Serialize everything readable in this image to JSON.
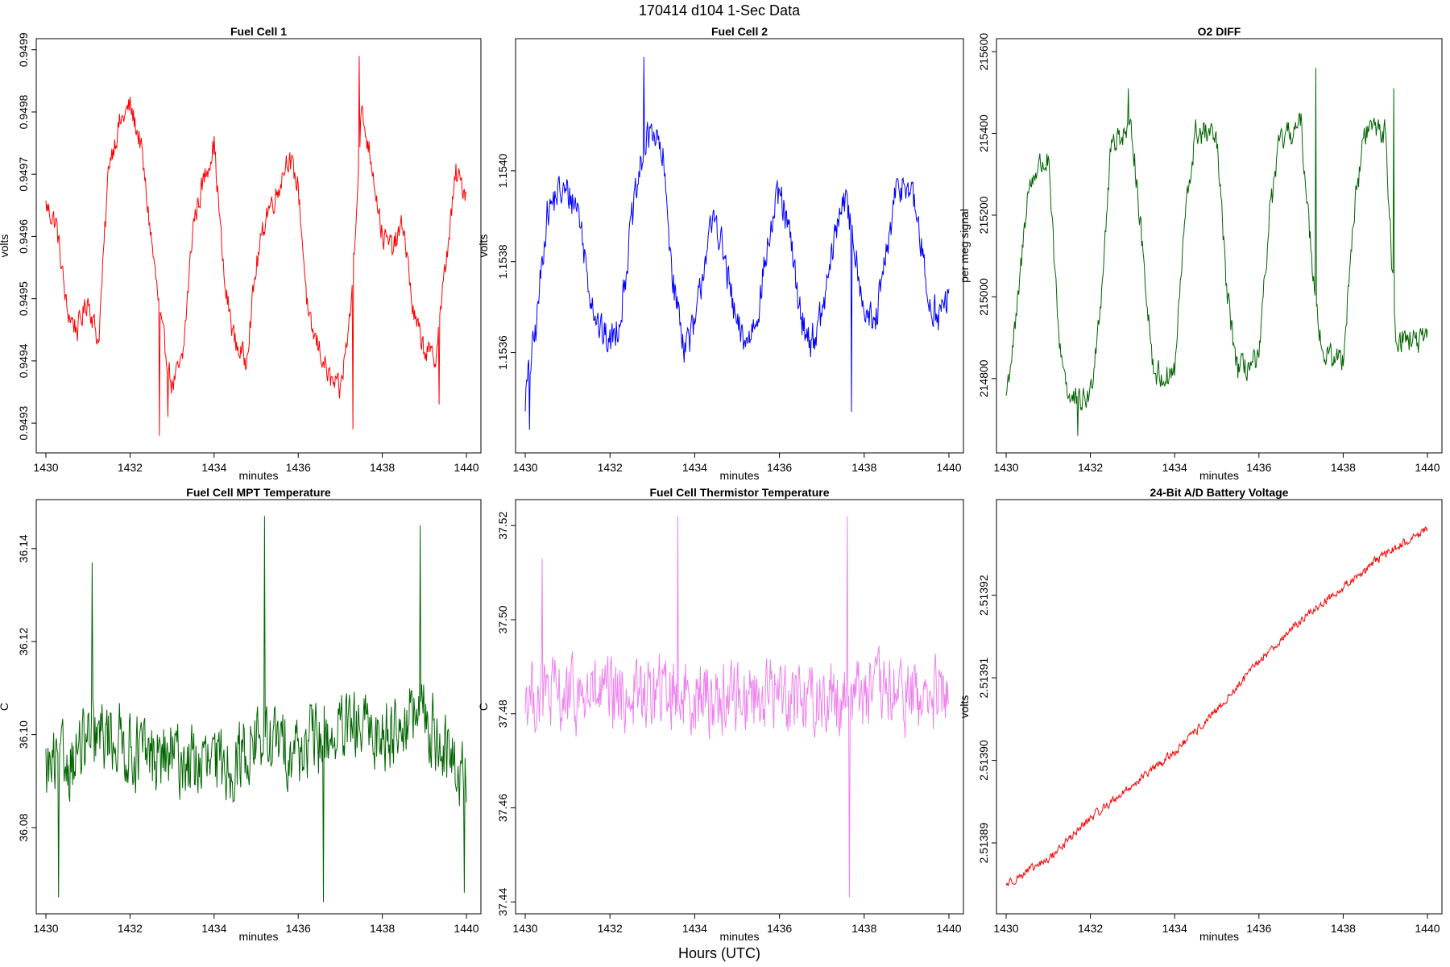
{
  "figure": {
    "title": "170414   d104   1-Sec Data",
    "xlabel": "Hours (UTC)"
  },
  "chart_data": [
    {
      "type": "line",
      "title": "Fuel Cell 1",
      "xlabel": "minutes",
      "ylabel": "volts",
      "color": "#ff0000",
      "xlim": [
        1430,
        1440
      ],
      "ylim": [
        0.94926,
        0.94991
      ],
      "xticks": [
        1430,
        1432,
        1434,
        1436,
        1438,
        1440
      ],
      "yticks": [
        0.9493,
        0.9494,
        0.9495,
        0.9496,
        0.9497,
        0.9498,
        0.9499
      ],
      "ytick_format": 4,
      "x": [
        1430.0,
        1430.25,
        1430.5,
        1430.75,
        1431.0,
        1431.25,
        1431.5,
        1431.75,
        1432.0,
        1432.25,
        1432.5,
        1432.75,
        1433.0,
        1433.25,
        1433.5,
        1433.75,
        1434.0,
        1434.25,
        1434.5,
        1434.75,
        1435.0,
        1435.25,
        1435.5,
        1435.75,
        1436.0,
        1436.25,
        1436.5,
        1436.75,
        1437.0,
        1437.25,
        1437.5,
        1437.75,
        1438.0,
        1438.25,
        1438.5,
        1438.75,
        1439.0,
        1439.25,
        1439.5,
        1439.75,
        1440.0
      ],
      "y": [
        0.94965,
        0.94962,
        0.94948,
        0.94945,
        0.9495,
        0.94943,
        0.94972,
        0.94978,
        0.94981,
        0.94975,
        0.9496,
        0.94945,
        0.94936,
        0.9494,
        0.94962,
        0.94969,
        0.94975,
        0.94952,
        0.94943,
        0.9494,
        0.94955,
        0.94964,
        0.94967,
        0.94973,
        0.94968,
        0.94946,
        0.94942,
        0.94937,
        0.94935,
        0.94948,
        0.9498,
        0.94972,
        0.9496,
        0.94958,
        0.94962,
        0.94947,
        0.94942,
        0.9494,
        0.94955,
        0.9497,
        0.94967
      ],
      "y_noise": 2.8e-05,
      "y_spikes": [
        [
          1432.7,
          0.94928
        ],
        [
          1432.9,
          0.94931
        ],
        [
          1437.45,
          0.94989
        ],
        [
          1437.3,
          0.94929
        ],
        [
          1439.35,
          0.94933
        ]
      ]
    },
    {
      "type": "line",
      "title": "Fuel Cell 2",
      "xlabel": "minutes",
      "ylabel": "volts",
      "color": "#0000ff",
      "xlim": [
        1430,
        1440
      ],
      "ylim": [
        1.15339,
        1.15428
      ],
      "xticks": [
        1430,
        1432,
        1434,
        1436,
        1438,
        1440
      ],
      "yticks": [
        1.1536,
        1.1538,
        1.154
      ],
      "ytick_format": 4,
      "x": [
        1430.0,
        1430.25,
        1430.5,
        1430.75,
        1431.0,
        1431.25,
        1431.5,
        1431.75,
        1432.0,
        1432.25,
        1432.5,
        1432.75,
        1433.0,
        1433.25,
        1433.5,
        1433.75,
        1434.0,
        1434.25,
        1434.5,
        1434.75,
        1435.0,
        1435.25,
        1435.5,
        1435.75,
        1436.0,
        1436.25,
        1436.5,
        1436.75,
        1437.0,
        1437.25,
        1437.5,
        1437.75,
        1438.0,
        1438.25,
        1438.5,
        1438.75,
        1439.0,
        1439.25,
        1439.5,
        1439.75,
        1440.0
      ],
      "y": [
        1.1535,
        1.15365,
        1.1539,
        1.15395,
        1.15395,
        1.15392,
        1.15375,
        1.15365,
        1.15362,
        1.15368,
        1.15388,
        1.15402,
        1.1541,
        1.15402,
        1.15375,
        1.15362,
        1.15365,
        1.15382,
        1.1539,
        1.15378,
        1.15365,
        1.15362,
        1.1537,
        1.15385,
        1.15395,
        1.15385,
        1.15368,
        1.15362,
        1.15368,
        1.15382,
        1.15395,
        1.15385,
        1.1537,
        1.15365,
        1.1538,
        1.15395,
        1.15398,
        1.1539,
        1.15372,
        1.15368,
        1.15372
      ],
      "y_noise": 5.5e-05,
      "y_spikes": [
        [
          1430.1,
          1.15343
        ],
        [
          1432.8,
          1.15425
        ],
        [
          1437.7,
          1.15347
        ]
      ]
    },
    {
      "type": "line",
      "title": "O2 DIFF",
      "xlabel": "minutes",
      "ylabel": "per meg signal",
      "color": "#006400",
      "xlim": [
        1430,
        1440
      ],
      "ylim": [
        214630,
        215620
      ],
      "xticks": [
        1430,
        1432,
        1434,
        1436,
        1438,
        1440
      ],
      "yticks": [
        214800,
        215000,
        215200,
        215400,
        215600
      ],
      "ytick_format": 0,
      "x": [
        1430.0,
        1430.25,
        1430.5,
        1430.75,
        1431.0,
        1431.25,
        1431.5,
        1431.75,
        1432.0,
        1432.25,
        1432.5,
        1432.75,
        1433.0,
        1433.25,
        1433.5,
        1433.75,
        1434.0,
        1434.25,
        1434.5,
        1434.75,
        1435.0,
        1435.25,
        1435.5,
        1435.75,
        1436.0,
        1436.25,
        1436.5,
        1436.75,
        1437.0,
        1437.25,
        1437.5,
        1437.75,
        1438.0,
        1438.25,
        1438.5,
        1438.75,
        1439.0,
        1439.25,
        1439.5,
        1439.75,
        1440.0
      ],
      "y": [
        214760,
        214950,
        215250,
        215320,
        215330,
        214900,
        214750,
        214740,
        214760,
        215000,
        215380,
        215400,
        215400,
        215100,
        214820,
        214800,
        214820,
        215200,
        215400,
        215400,
        215380,
        215000,
        214820,
        214830,
        214840,
        215200,
        215380,
        215400,
        215420,
        215100,
        214860,
        214850,
        214850,
        215200,
        215400,
        215420,
        215400,
        214900,
        214900,
        214890,
        214890
      ],
      "y_noise": 45,
      "y_spikes": [
        [
          1431.7,
          214660
        ],
        [
          1432.9,
          215510
        ],
        [
          1437.35,
          215560
        ],
        [
          1439.2,
          215510
        ]
      ]
    },
    {
      "type": "line",
      "title": "Fuel Cell MPT Temperature",
      "xlabel": "minutes",
      "ylabel": "C",
      "color": "#006400",
      "xlim": [
        1430,
        1440
      ],
      "ylim": [
        36.0625,
        36.1495
      ],
      "xticks": [
        1430,
        1432,
        1434,
        1436,
        1438,
        1440
      ],
      "yticks": [
        36.08,
        36.1,
        36.12,
        36.14
      ],
      "ytick_format": 2,
      "x": [
        1430.0,
        1430.5,
        1431.0,
        1431.5,
        1432.0,
        1432.5,
        1433.0,
        1433.5,
        1434.0,
        1434.5,
        1435.0,
        1435.5,
        1436.0,
        1436.5,
        1437.0,
        1437.5,
        1438.0,
        1438.5,
        1439.0,
        1439.5,
        1440.0
      ],
      "y": [
        36.092,
        36.094,
        36.098,
        36.1,
        36.097,
        36.095,
        36.095,
        36.094,
        36.093,
        36.094,
        36.099,
        36.098,
        36.097,
        36.099,
        36.1,
        36.101,
        36.1,
        36.103,
        36.104,
        36.096,
        36.09
      ],
      "y_noise": 0.011,
      "y_spikes": [
        [
          1431.1,
          36.137
        ],
        [
          1435.2,
          36.147
        ],
        [
          1438.9,
          36.145
        ],
        [
          1436.6,
          36.064
        ],
        [
          1439.95,
          36.066
        ],
        [
          1430.3,
          36.065
        ]
      ]
    },
    {
      "type": "line",
      "title": "Fuel Cell Thermistor Temperature",
      "xlabel": "minutes",
      "ylabel": "C",
      "color": "#ee82ee",
      "xlim": [
        1430,
        1440
      ],
      "ylim": [
        37.4385,
        37.5245
      ],
      "xticks": [
        1430,
        1432,
        1434,
        1436,
        1438,
        1440
      ],
      "yticks": [
        37.44,
        37.46,
        37.48,
        37.5,
        37.52
      ],
      "ytick_format": 2,
      "x": [
        1430.0,
        1430.5,
        1431.0,
        1431.5,
        1432.0,
        1432.5,
        1433.0,
        1433.5,
        1434.0,
        1434.5,
        1435.0,
        1435.5,
        1436.0,
        1436.5,
        1437.0,
        1437.5,
        1438.0,
        1438.5,
        1439.0,
        1439.5,
        1440.0
      ],
      "y": [
        37.484,
        37.484,
        37.483,
        37.484,
        37.483,
        37.484,
        37.484,
        37.485,
        37.484,
        37.483,
        37.484,
        37.484,
        37.485,
        37.484,
        37.483,
        37.484,
        37.485,
        37.484,
        37.484,
        37.483,
        37.484
      ],
      "y_noise": 0.011,
      "y_spikes": [
        [
          1433.6,
          37.522
        ],
        [
          1437.6,
          37.522
        ],
        [
          1437.65,
          37.441
        ],
        [
          1430.4,
          37.513
        ]
      ]
    },
    {
      "type": "line",
      "title": "24-Bit A/D Battery Voltage",
      "xlabel": "minutes",
      "ylabel": "volts",
      "color": "#ff0000",
      "xlim": [
        1430,
        1440
      ],
      "ylim": [
        2.513882,
        2.513931
      ],
      "xticks": [
        1430,
        1432,
        1434,
        1436,
        1438,
        1440
      ],
      "yticks": [
        2.51389,
        2.5139,
        2.51391,
        2.51392
      ],
      "ytick_format": 5,
      "x": [
        1430.0,
        1431.0,
        1432.0,
        1433.0,
        1434.0,
        1435.0,
        1436.0,
        1437.0,
        1438.0,
        1439.0,
        1440.0
      ],
      "y": [
        2.513885,
        2.513888,
        2.513893,
        2.513897,
        2.513901,
        2.513906,
        2.513912,
        2.513917,
        2.513921,
        2.513925,
        2.513928
      ],
      "y_noise": 7e-07,
      "y_spikes": []
    }
  ]
}
